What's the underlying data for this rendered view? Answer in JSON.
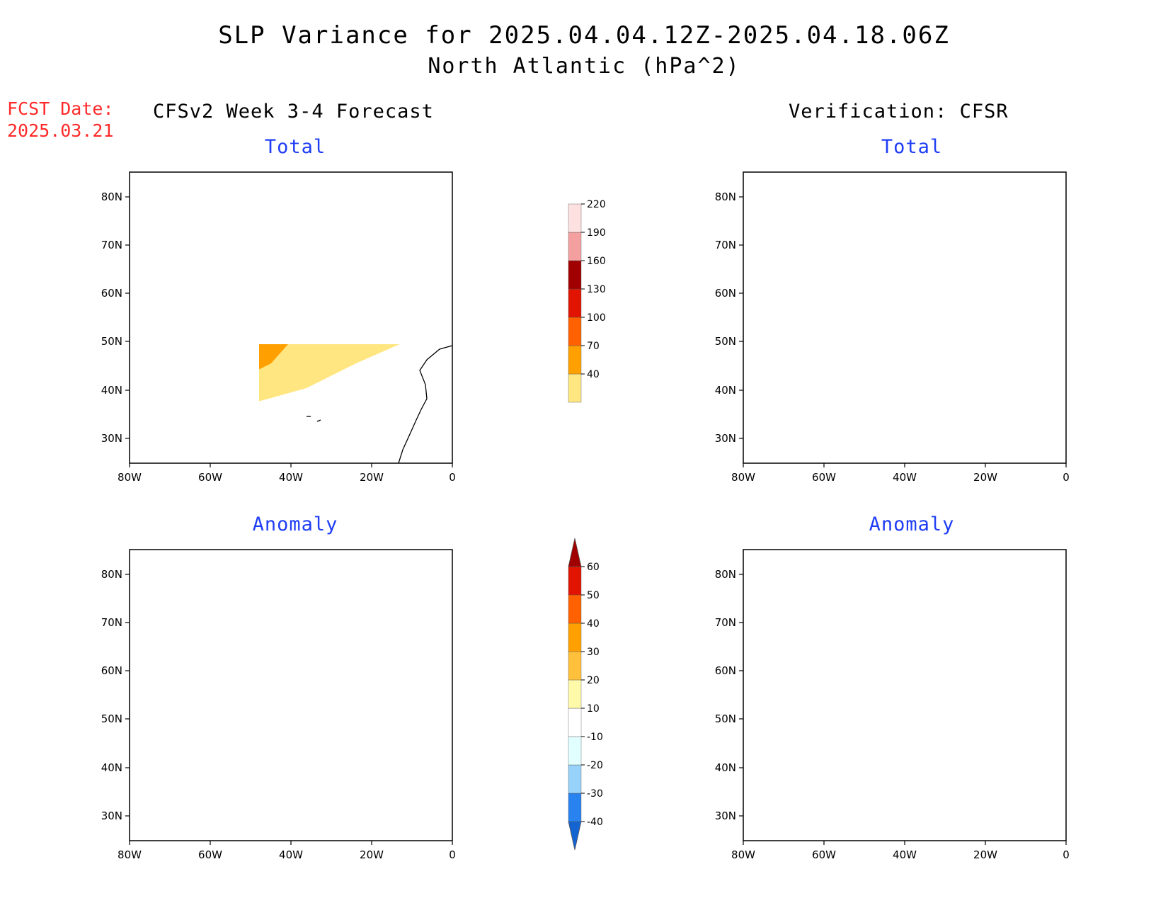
{
  "title": {
    "line1": "SLP Variance for 2025.04.04.12Z-2025.04.18.06Z",
    "line2": "North Atlantic (hPa^2)"
  },
  "fcst_date": {
    "label": "FCST Date:",
    "value": "2025.03.21"
  },
  "columns": {
    "left": "CFSv2 Week 3-4 Forecast",
    "right": "Verification: CFSR"
  },
  "panels": [
    {
      "id": "fcst-total",
      "title": "Total"
    },
    {
      "id": "cfsr-total",
      "title": "Total"
    },
    {
      "id": "fcst-anomaly",
      "title": "Anomaly"
    },
    {
      "id": "cfsr-anomaly",
      "title": "Anomaly"
    }
  ],
  "axes": {
    "lon_ticks": [
      "80W",
      "60W",
      "40W",
      "20W",
      "0"
    ],
    "lat_ticks": [
      "80N",
      "70N",
      "60N",
      "50N",
      "40N",
      "30N"
    ]
  },
  "colorbar_total": {
    "labels": [
      "40",
      "70",
      "100",
      "130",
      "160",
      "190",
      "220"
    ],
    "colors": [
      "#ffe680",
      "#ffa000",
      "#ff6000",
      "#e01400",
      "#a00000",
      "#f4a0a0",
      "#fde0e0"
    ]
  },
  "colorbar_anomaly": {
    "labels": [
      "-40",
      "-30",
      "-20",
      "-10",
      "10",
      "20",
      "30",
      "40",
      "50",
      "60"
    ],
    "colors": [
      "#1464d2",
      "#2882f0",
      "#96d2fa",
      "#e1ffff",
      "#ffffff",
      "#fffaaa",
      "#ffc03c",
      "#ffa000",
      "#ff6000",
      "#e01400",
      "#a00000"
    ]
  },
  "fill_colors": {
    "total": {
      "c40": "#ffe680",
      "c70": "#ffa000",
      "c100": "#ff6000",
      "c130": "#e01400",
      "c160": "#a00000"
    },
    "anomaly": {
      "n40": "#1464d2",
      "n30": "#2882f0",
      "n20": "#96d2fa",
      "n10": "#e1ffff",
      "p10": "#fffaaa",
      "p20": "#ffc03c",
      "p30": "#ffa000",
      "p40": "#ff6000",
      "p50": "#e01400",
      "p60": "#a00000"
    }
  }
}
